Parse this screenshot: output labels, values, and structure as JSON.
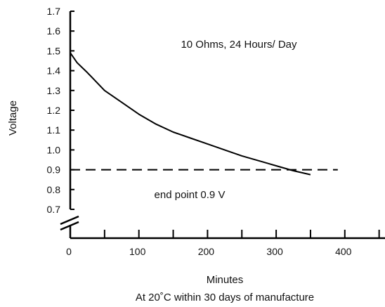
{
  "chart_data": {
    "type": "line",
    "annotation": "10 Ohms, 24 Hours/ Day",
    "endpoint_label": "end point 0.9 V",
    "xlabel": "Minutes",
    "ylabel": "Voltage",
    "caption": "At 20˚C within 30 days of manufacture",
    "xlim": [
      0,
      460
    ],
    "ylim": [
      0.6,
      1.7
    ],
    "x_ticks": [
      {
        "value": 0,
        "label": "0"
      },
      {
        "value": 100,
        "label": "100"
      },
      {
        "value": 200,
        "label": "200"
      },
      {
        "value": 300,
        "label": "300"
      },
      {
        "value": 400,
        "label": "400"
      }
    ],
    "x_minor_ticks": [
      50,
      150,
      250,
      350,
      450
    ],
    "y_ticks": [
      {
        "value": 0.7,
        "label": "0.7"
      },
      {
        "value": 0.8,
        "label": "0.8"
      },
      {
        "value": 0.9,
        "label": "0.9"
      },
      {
        "value": 1.0,
        "label": "1.0"
      },
      {
        "value": 1.1,
        "label": "1.1"
      },
      {
        "value": 1.2,
        "label": "1.2"
      },
      {
        "value": 1.3,
        "label": "1.3"
      },
      {
        "value": 1.4,
        "label": "1.4"
      },
      {
        "value": 1.5,
        "label": "1.5"
      },
      {
        "value": 1.6,
        "label": "1.6"
      },
      {
        "value": 1.7,
        "label": "1.7"
      }
    ],
    "axis_break": true,
    "grid": false,
    "series": [
      {
        "style": "solid",
        "color": "#000000",
        "x": [
          0,
          10,
          25,
          50,
          75,
          100,
          125,
          150,
          175,
          200,
          225,
          250,
          275,
          300,
          325,
          350
        ],
        "y": [
          1.49,
          1.44,
          1.39,
          1.3,
          1.24,
          1.18,
          1.13,
          1.09,
          1.06,
          1.03,
          1.0,
          0.97,
          0.945,
          0.92,
          0.895,
          0.875
        ]
      }
    ],
    "reference_lines": [
      {
        "y": 0.9,
        "x_start": 0,
        "x_end": 400,
        "style": "dashed",
        "color": "#000000"
      }
    ]
  }
}
